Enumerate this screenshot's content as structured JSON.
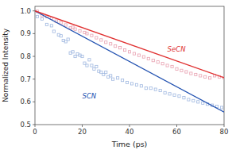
{
  "chart_data": {
    "type": "scatter",
    "title": "",
    "xlabel": "Time (ps)",
    "ylabel": "Normalized Intensity",
    "xlim": [
      0,
      80
    ],
    "ylim": [
      0.5,
      1.02
    ],
    "xticks": [
      0,
      20,
      40,
      60,
      80
    ],
    "yticks": [
      0.5,
      0.6,
      0.7,
      0.8,
      0.9,
      {
        "value": 1.0,
        "label": "1.0"
      }
    ],
    "grid": false,
    "series": [
      {
        "type": "scatter",
        "marker": "square",
        "color": "#a0b8e0",
        "x": [
          1,
          3,
          5,
          7,
          8,
          10,
          11,
          12,
          13,
          14,
          15,
          16,
          17,
          18,
          19,
          20,
          21,
          22,
          23,
          24,
          25,
          26,
          27,
          28,
          29,
          30,
          31,
          32,
          33,
          35,
          37,
          39,
          41,
          43,
          45,
          47,
          49,
          51,
          53,
          55,
          57,
          59,
          61,
          63,
          65,
          67,
          69,
          71,
          73,
          75,
          77,
          79
        ],
        "values": [
          0.975,
          0.965,
          0.94,
          0.935,
          0.91,
          0.895,
          0.89,
          0.87,
          0.865,
          0.875,
          0.815,
          0.82,
          0.8,
          0.81,
          0.805,
          0.8,
          0.77,
          0.76,
          0.785,
          0.76,
          0.745,
          0.755,
          0.735,
          0.73,
          0.72,
          0.73,
          0.71,
          0.715,
          0.7,
          0.705,
          0.695,
          0.685,
          0.68,
          0.675,
          0.67,
          0.66,
          0.66,
          0.655,
          0.65,
          0.64,
          0.635,
          0.63,
          0.625,
          0.618,
          0.61,
          0.605,
          0.6,
          0.595,
          0.59,
          0.585,
          0.58,
          0.575
        ]
      },
      {
        "type": "scatter",
        "marker": "square",
        "color": "#e8a0b0",
        "x": [
          1,
          3,
          5,
          7,
          9,
          11,
          13,
          15,
          16,
          17,
          19,
          21,
          22,
          24,
          26,
          28,
          30,
          32,
          34,
          36,
          38,
          40,
          42,
          44,
          46,
          48,
          50,
          52,
          54,
          56,
          58,
          60,
          62,
          64,
          66,
          68,
          70,
          72,
          74,
          76,
          78,
          80
        ],
        "values": [
          0.998,
          0.98,
          0.975,
          0.968,
          0.955,
          0.948,
          0.938,
          0.925,
          0.928,
          0.92,
          0.912,
          0.905,
          0.9,
          0.892,
          0.882,
          0.872,
          0.862,
          0.855,
          0.845,
          0.838,
          0.828,
          0.82,
          0.812,
          0.805,
          0.798,
          0.79,
          0.782,
          0.775,
          0.768,
          0.76,
          0.755,
          0.745,
          0.738,
          0.732,
          0.725,
          0.72,
          0.715,
          0.71,
          0.705,
          0.715,
          0.71,
          0.706
        ]
      },
      {
        "type": "line",
        "line_style": "solid",
        "color": "#2050b0",
        "x": [
          0,
          80
        ],
        "values": [
          1.0,
          0.555
        ]
      },
      {
        "type": "line",
        "line_style": "solid",
        "color": "#e03030",
        "x": [
          0,
          80
        ],
        "values": [
          1.0,
          0.706
        ]
      }
    ],
    "annotations": [
      {
        "text": "SCN",
        "color": "#2050b0"
      },
      {
        "text": "SeCN",
        "color": "#e03030"
      }
    ]
  }
}
